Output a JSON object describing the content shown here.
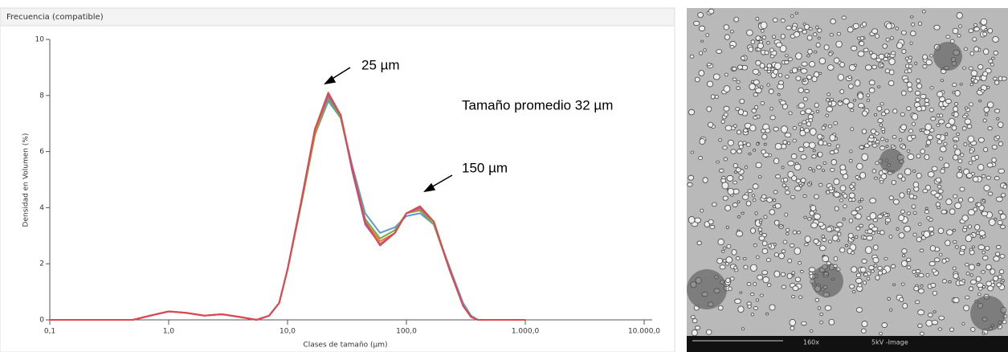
{
  "chart_data": {
    "type": "line",
    "title": "Frecuencia (compatible)",
    "x_label": "Clases de tamaño (µm)",
    "y_label": "Densidad en Volumen (%)",
    "annotations": [
      "25 µm",
      "Tamaño promedio 32 µm",
      "150 µm"
    ],
    "xscale": "log",
    "xlim": [
      0.1,
      10000
    ],
    "ylim": [
      0,
      10
    ],
    "xticks": [
      {
        "value": 0.1,
        "label": "0,1"
      },
      {
        "value": 1,
        "label": "1,0"
      },
      {
        "value": 10,
        "label": "10,0"
      },
      {
        "value": 100,
        "label": "100,0"
      },
      {
        "value": 1000,
        "label": "1.000,0"
      },
      {
        "value": 10000,
        "label": "10.000,0"
      }
    ],
    "yticks": [
      0,
      2,
      4,
      6,
      8,
      10
    ],
    "x": [
      0.1,
      0.5,
      0.7,
      1.0,
      1.4,
      2.0,
      2.8,
      4.0,
      5.5,
      7,
      8.5,
      10,
      13,
      17,
      22,
      28,
      35,
      45,
      60,
      80,
      100,
      130,
      170,
      230,
      300,
      350,
      400,
      1000
    ],
    "series": [
      {
        "color": "#5b9bd5",
        "values": [
          0,
          0,
          0.15,
          0.3,
          0.25,
          0.15,
          0.2,
          0.1,
          0,
          0.15,
          0.6,
          1.8,
          4.1,
          6.6,
          7.8,
          7.2,
          5.5,
          3.8,
          3.1,
          3.3,
          3.7,
          3.8,
          3.4,
          1.9,
          0.6,
          0.15,
          0,
          0
        ]
      },
      {
        "color": "#70ad47",
        "values": [
          0,
          0,
          0.15,
          0.3,
          0.25,
          0.15,
          0.2,
          0.1,
          0,
          0.15,
          0.6,
          1.8,
          4.1,
          6.6,
          7.9,
          7.2,
          5.4,
          3.6,
          2.9,
          3.2,
          3.8,
          3.9,
          3.4,
          1.8,
          0.5,
          0.1,
          0,
          0
        ]
      },
      {
        "color": "#ed7d31",
        "values": [
          0,
          0,
          0.15,
          0.3,
          0.25,
          0.15,
          0.2,
          0.1,
          0,
          0.15,
          0.6,
          1.8,
          4.2,
          6.7,
          8.0,
          7.3,
          5.4,
          3.5,
          2.8,
          3.1,
          3.8,
          3.95,
          3.5,
          1.8,
          0.5,
          0.1,
          0,
          0
        ]
      },
      {
        "color": "#9e5fb5",
        "values": [
          0,
          0,
          0.15,
          0.3,
          0.25,
          0.15,
          0.2,
          0.1,
          0,
          0.15,
          0.6,
          1.8,
          4.2,
          6.8,
          8.0,
          7.3,
          5.3,
          3.4,
          2.7,
          3.1,
          3.8,
          4.0,
          3.5,
          1.8,
          0.5,
          0.1,
          0,
          0
        ]
      },
      {
        "color": "#e0474c",
        "values": [
          0,
          0,
          0.15,
          0.3,
          0.25,
          0.15,
          0.2,
          0.1,
          0,
          0.15,
          0.6,
          1.8,
          4.2,
          6.8,
          8.1,
          7.3,
          5.4,
          3.5,
          2.65,
          3.1,
          3.8,
          4.05,
          3.5,
          1.8,
          0.5,
          0.1,
          0,
          0
        ]
      }
    ]
  },
  "image": {
    "labels": [
      "160x",
      "5kV -Image"
    ]
  }
}
